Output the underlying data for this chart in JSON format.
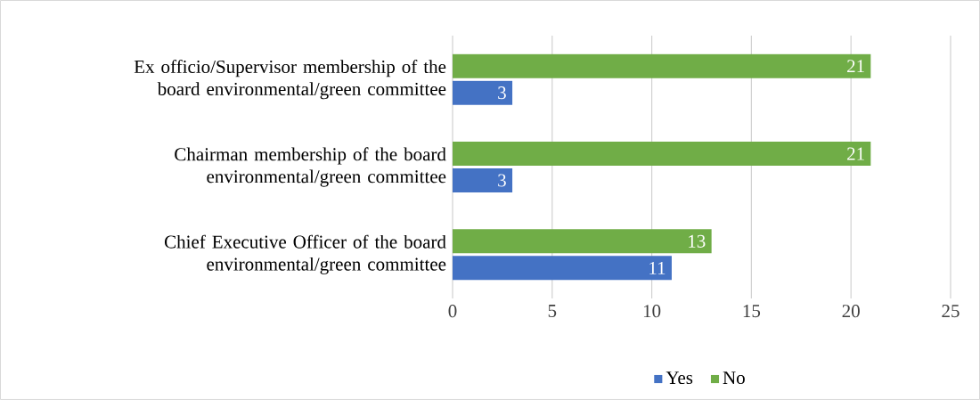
{
  "chart_data": {
    "type": "bar",
    "orientation": "horizontal",
    "categories": [
      "Ex officio/Supervisor membership of the board environmental/green committee",
      "Chairman membership of the board environmental/green committee",
      "Chief Executive Officer of the board environmental/green committee"
    ],
    "series": [
      {
        "name": "Yes",
        "color": "#4472c4",
        "values": [
          3,
          3,
          11
        ]
      },
      {
        "name": "No",
        "color": "#70ad47",
        "values": [
          21,
          21,
          13
        ]
      }
    ],
    "xlim": [
      0,
      25
    ],
    "xticks": [
      0,
      5,
      10,
      15,
      20,
      25
    ],
    "grid": "x",
    "legend": "bottom",
    "data_labels": true
  }
}
